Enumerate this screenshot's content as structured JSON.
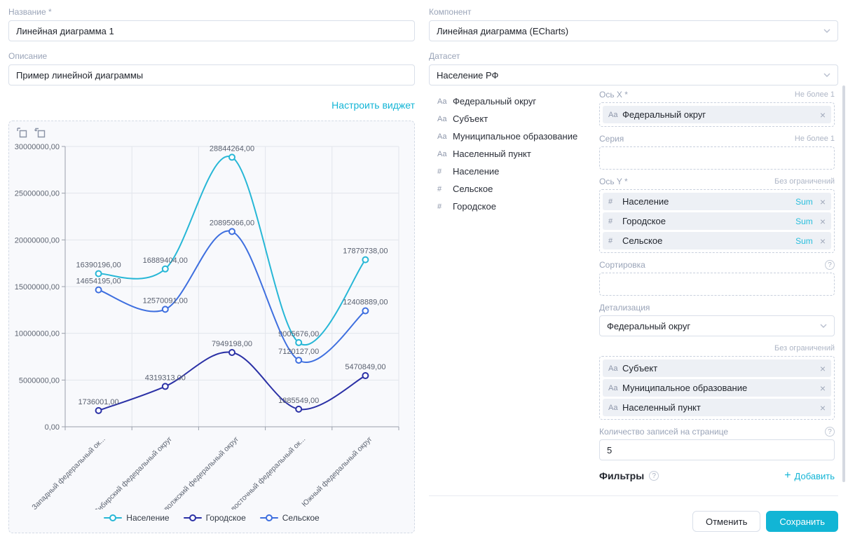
{
  "left": {
    "name_label": "Название *",
    "name_value": "Линейная диаграмма 1",
    "description_label": "Описание",
    "description_value": "Пример линейной диаграммы",
    "configure_link": "Настроить виджет"
  },
  "right": {
    "component_label": "Компонент",
    "component_value": "Линейная диаграмма (ECharts)",
    "dataset_label": "Датасет",
    "dataset_value": "Население РФ",
    "fields": [
      {
        "type": "text",
        "name": "Федеральный округ"
      },
      {
        "type": "text",
        "name": "Субъект"
      },
      {
        "type": "text",
        "name": "Муниципальное образование"
      },
      {
        "type": "text",
        "name": "Населенный пункт"
      },
      {
        "type": "number",
        "name": "Население"
      },
      {
        "type": "number",
        "name": "Сельское"
      },
      {
        "type": "number",
        "name": "Городское"
      }
    ],
    "axis_x": {
      "label": "Ось X *",
      "limit": "Не более 1",
      "chips": [
        {
          "type": "text",
          "name": "Федеральный округ"
        }
      ]
    },
    "series_zone": {
      "label": "Серия",
      "limit": "Не более 1",
      "chips": []
    },
    "axis_y": {
      "label": "Ось Y *",
      "limit": "Без ограничений",
      "chips": [
        {
          "type": "number",
          "name": "Население",
          "agg": "Sum"
        },
        {
          "type": "number",
          "name": "Городское",
          "agg": "Sum"
        },
        {
          "type": "number",
          "name": "Сельское",
          "agg": "Sum"
        }
      ]
    },
    "sorting": {
      "label": "Сортировка",
      "chips": []
    },
    "detail": {
      "label": "Детализация",
      "value": "Федеральный округ",
      "limit": "Без ограничений",
      "chips": [
        {
          "type": "text",
          "name": "Субъект"
        },
        {
          "type": "text",
          "name": "Муниципальное образование"
        },
        {
          "type": "text",
          "name": "Населенный пункт"
        }
      ]
    },
    "page_size": {
      "label": "Количество записей на странице",
      "value": "5"
    },
    "filters": {
      "label": "Фильтры",
      "add_label": "Добавить"
    },
    "cancel_label": "Отменить",
    "save_label": "Сохранить"
  },
  "icons": {
    "text_field": "Aa",
    "number_field": "#",
    "close": "×",
    "plus": "+",
    "help": "?"
  },
  "chart_data": {
    "type": "line",
    "title": "",
    "categories": [
      "Западный федеральный ок...",
      "Сибирский федеральный округ",
      "Приволжский федеральный округ",
      "Дальневосточный федеральный ок...",
      "Южный федеральный округ"
    ],
    "series": [
      {
        "name": "Население",
        "color": "#27b7d6",
        "values": [
          16390196,
          16889404,
          28844264,
          9005676,
          17879738
        ]
      },
      {
        "name": "Городское",
        "color": "#2b31a6",
        "values": [
          1736001,
          4319313,
          7949198,
          1885549,
          5470849
        ]
      },
      {
        "name": "Сельское",
        "color": "#3e6fdf",
        "values": [
          14654195,
          12570091,
          20895066,
          7120127,
          12408889
        ]
      }
    ],
    "ylim": [
      0,
      30000000
    ],
    "ytick_step": 5000000,
    "ytick_labels": [
      "0,00",
      "5000000,00",
      "10000000,00",
      "15000000,00",
      "20000000,00",
      "25000000,00",
      "30000000,00"
    ],
    "label_suffix": ",00",
    "grid": true,
    "smooth": true,
    "legend_position": "bottom"
  }
}
